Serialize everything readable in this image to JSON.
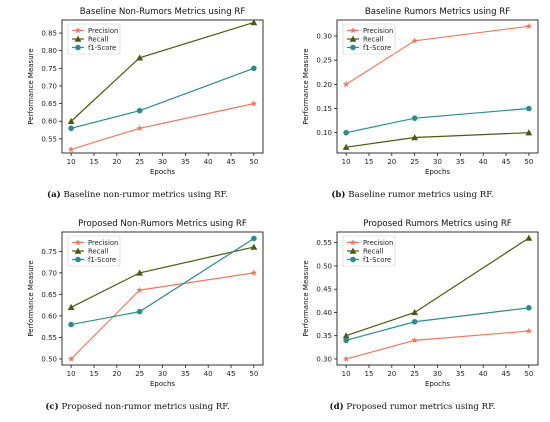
{
  "colors": {
    "precision": "#f07860",
    "recall": "#4a5a10",
    "f1": "#2a8c8c",
    "axis": "#000000"
  },
  "panels": [
    {
      "id": "a",
      "caption_label": "(a)",
      "caption_text": "Baseline non-rumor metrics using RF.",
      "chart_data": {
        "type": "line",
        "title": "Baseline Non-Rumors Metrics using RF",
        "xlabel": "Epochs",
        "ylabel": "Performance Measure",
        "x": [
          10,
          25,
          50
        ],
        "xticks": [
          10,
          15,
          20,
          25,
          30,
          35,
          40,
          45,
          50
        ],
        "xlim": [
          8,
          52
        ],
        "yticks": [
          0.55,
          0.6,
          0.65,
          0.7,
          0.75,
          0.8,
          0.85
        ],
        "ylim": [
          0.51,
          0.887
        ],
        "legend": "top-left",
        "series": [
          {
            "name": "Precision",
            "values": [
              0.52,
              0.58,
              0.65
            ]
          },
          {
            "name": "Recall",
            "values": [
              0.6,
              0.78,
              0.88
            ]
          },
          {
            "name": "f1-Score",
            "values": [
              0.58,
              0.63,
              0.75
            ]
          }
        ]
      }
    },
    {
      "id": "b",
      "caption_label": "(b)",
      "caption_text": "Baseline rumor metrics using RF.",
      "chart_data": {
        "type": "line",
        "title": "Baseline Rumors Metrics using RF",
        "xlabel": "Epochs",
        "ylabel": "Performance Measure",
        "x": [
          10,
          25,
          50
        ],
        "xticks": [
          10,
          15,
          20,
          25,
          30,
          35,
          40,
          45,
          50
        ],
        "xlim": [
          8,
          52
        ],
        "yticks": [
          0.1,
          0.15,
          0.2,
          0.25,
          0.3
        ],
        "ylim": [
          0.058,
          0.333
        ],
        "legend": "top-left",
        "series": [
          {
            "name": "Precision",
            "values": [
              0.2,
              0.29,
              0.32
            ]
          },
          {
            "name": "Recall",
            "values": [
              0.07,
              0.09,
              0.1
            ]
          },
          {
            "name": "f1-Score",
            "values": [
              0.1,
              0.13,
              0.15
            ]
          }
        ]
      }
    },
    {
      "id": "c",
      "caption_label": "(c)",
      "caption_text": "Proposed non-rumor metrics using RF.",
      "chart_data": {
        "type": "line",
        "title": "Proposed Non-Rumors Metrics using RF",
        "xlabel": "Epochs",
        "ylabel": "Performance Measure",
        "x": [
          10,
          25,
          50
        ],
        "xticks": [
          10,
          15,
          20,
          25,
          30,
          35,
          40,
          45,
          50
        ],
        "xlim": [
          8,
          52
        ],
        "yticks": [
          0.5,
          0.55,
          0.6,
          0.65,
          0.7,
          0.75
        ],
        "ylim": [
          0.486,
          0.795
        ],
        "legend": "top-left",
        "series": [
          {
            "name": "Precision",
            "values": [
              0.5,
              0.66,
              0.7
            ]
          },
          {
            "name": "Recall",
            "values": [
              0.62,
              0.7,
              0.76
            ]
          },
          {
            "name": "f1-Score",
            "values": [
              0.58,
              0.61,
              0.78
            ]
          }
        ]
      }
    },
    {
      "id": "d",
      "caption_label": "(d)",
      "caption_text": "Proposed rumor metrics using RF.",
      "chart_data": {
        "type": "line",
        "title": "Proposed Rumors Metrics using RF",
        "xlabel": "Epochs",
        "ylabel": "Performance Measure",
        "x": [
          10,
          25,
          50
        ],
        "xticks": [
          10,
          15,
          20,
          25,
          30,
          35,
          40,
          45,
          50
        ],
        "xlim": [
          8,
          52
        ],
        "yticks": [
          0.3,
          0.35,
          0.4,
          0.45,
          0.5,
          0.55
        ],
        "ylim": [
          0.287,
          0.573
        ],
        "legend": "top-left",
        "series": [
          {
            "name": "Precision",
            "values": [
              0.3,
              0.34,
              0.36
            ]
          },
          {
            "name": "Recall",
            "values": [
              0.35,
              0.4,
              0.56
            ]
          },
          {
            "name": "f1-Score",
            "values": [
              0.34,
              0.38,
              0.41
            ]
          }
        ]
      }
    }
  ]
}
